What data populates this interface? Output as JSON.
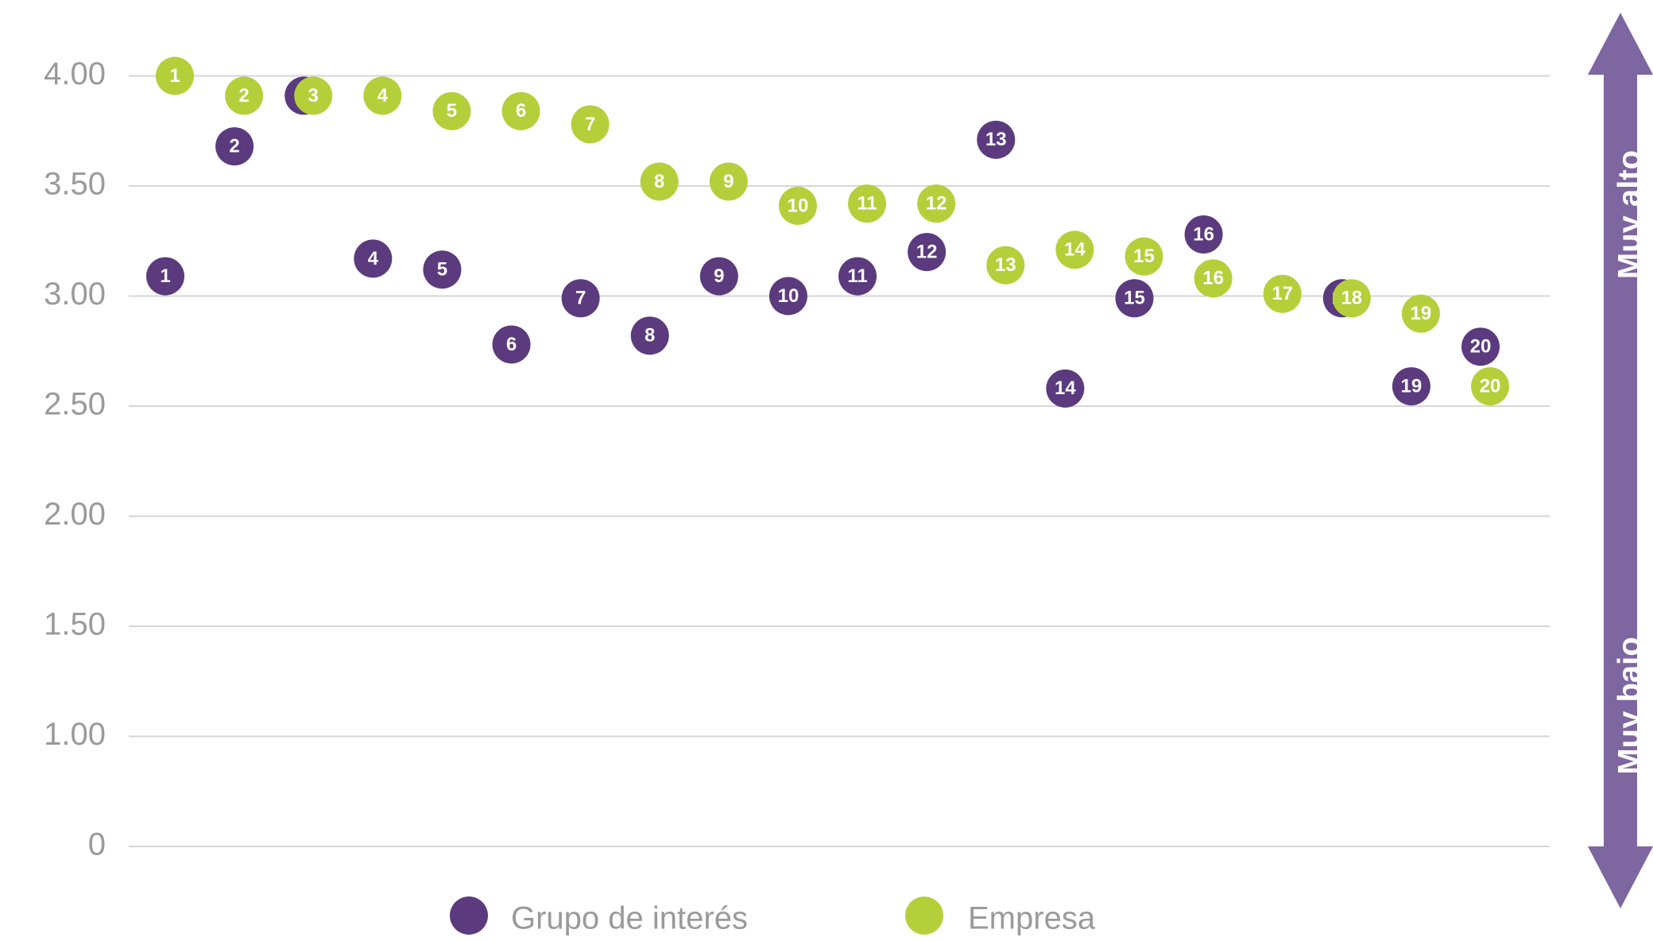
{
  "chart_data": {
    "type": "scatter",
    "categories": [
      "1",
      "2",
      "3",
      "4",
      "5",
      "6",
      "7",
      "8",
      "9",
      "10",
      "11",
      "12",
      "13",
      "14",
      "15",
      "16",
      "17",
      "18",
      "19",
      "20"
    ],
    "series": [
      {
        "name": "Grupo de interés",
        "color": "#5b3a7e",
        "values": [
          3.09,
          3.68,
          3.91,
          3.17,
          3.12,
          2.78,
          2.99,
          2.82,
          3.09,
          3.0,
          3.09,
          3.2,
          3.71,
          2.58,
          2.99,
          3.28,
          null,
          2.99,
          2.59,
          2.77
        ]
      },
      {
        "name": "Empresa",
        "color": "#b5cf3b",
        "values": [
          4.0,
          3.91,
          3.91,
          3.91,
          3.84,
          3.84,
          3.78,
          3.52,
          3.52,
          3.41,
          3.42,
          3.42,
          3.14,
          3.21,
          3.18,
          3.08,
          3.01,
          2.99,
          2.92,
          2.59
        ]
      }
    ],
    "yticks": [
      0,
      1,
      1.5,
      2,
      2.5,
      3,
      3.5,
      4
    ],
    "ytick_labels": [
      "0",
      "1.00",
      "1.50",
      "2.00",
      "2.50",
      "3.00",
      "3.50",
      "4.00"
    ],
    "ylim": [
      0,
      4
    ],
    "grid": true,
    "scale_labels": {
      "top": "Muy alto",
      "bottom": "Muy bajo"
    }
  }
}
